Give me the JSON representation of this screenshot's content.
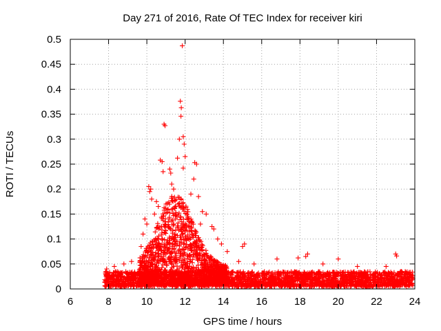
{
  "chart_data": {
    "type": "scatter",
    "title": "Day 271 of 2016, Rate Of TEC Index for receiver kiri",
    "xlabel": "GPS time / hours",
    "ylabel": "ROTI / TECUs",
    "xlim": [
      6,
      24
    ],
    "ylim": [
      0,
      0.5
    ],
    "xticks": [
      6,
      8,
      10,
      12,
      14,
      16,
      18,
      20,
      22,
      24
    ],
    "xtick_labels": [
      "6",
      "8",
      "10",
      "12",
      "14",
      "16",
      "18",
      "20",
      "22",
      "24"
    ],
    "yticks": [
      0,
      0.05,
      0.1,
      0.15,
      0.2,
      0.25,
      0.3,
      0.35,
      0.4,
      0.45,
      0.5
    ],
    "ytick_labels": [
      "0",
      "0.05",
      "0.1",
      "0.15",
      "0.2",
      "0.25",
      "0.3",
      "0.35",
      "0.4",
      "0.45",
      "0.5"
    ],
    "grid": true,
    "marker": "+",
    "color": "#ff0000",
    "series": [
      {
        "name": "ROTI",
        "points": [
          [
            11.85,
            0.487
          ],
          [
            11.75,
            0.376
          ],
          [
            11.8,
            0.363
          ],
          [
            11.78,
            0.346
          ],
          [
            10.9,
            0.33
          ],
          [
            10.95,
            0.327
          ],
          [
            11.9,
            0.305
          ],
          [
            11.7,
            0.3
          ],
          [
            11.95,
            0.29
          ],
          [
            12.0,
            0.265
          ],
          [
            11.6,
            0.262
          ],
          [
            10.7,
            0.258
          ],
          [
            10.8,
            0.255
          ],
          [
            12.5,
            0.253
          ],
          [
            12.6,
            0.25
          ],
          [
            11.9,
            0.242
          ],
          [
            11.2,
            0.24
          ],
          [
            11.25,
            0.232
          ],
          [
            10.85,
            0.235
          ],
          [
            12.45,
            0.22
          ],
          [
            10.1,
            0.205
          ],
          [
            10.2,
            0.2
          ],
          [
            10.15,
            0.195
          ],
          [
            11.3,
            0.21
          ],
          [
            11.4,
            0.2
          ],
          [
            12.3,
            0.19
          ],
          [
            12.7,
            0.185
          ],
          [
            10.25,
            0.18
          ],
          [
            10.5,
            0.175
          ],
          [
            10.6,
            0.165
          ],
          [
            11.0,
            0.17
          ],
          [
            11.1,
            0.16
          ],
          [
            12.9,
            0.155
          ],
          [
            13.1,
            0.15
          ],
          [
            10.4,
            0.15
          ],
          [
            9.9,
            0.14
          ],
          [
            10.0,
            0.13
          ],
          [
            11.5,
            0.14
          ],
          [
            12.2,
            0.135
          ],
          [
            12.8,
            0.13
          ],
          [
            13.4,
            0.125
          ],
          [
            13.5,
            0.12
          ],
          [
            9.8,
            0.11
          ],
          [
            11.8,
            0.12
          ],
          [
            13.7,
            0.1
          ],
          [
            13.9,
            0.09
          ],
          [
            9.7,
            0.085
          ],
          [
            15.1,
            0.09
          ],
          [
            15.0,
            0.085
          ],
          [
            14.2,
            0.075
          ],
          [
            23.0,
            0.07
          ],
          [
            23.05,
            0.066
          ],
          [
            18.4,
            0.07
          ],
          [
            18.3,
            0.065
          ],
          [
            17.9,
            0.062
          ],
          [
            16.8,
            0.06
          ],
          [
            20.0,
            0.06
          ],
          [
            15.6,
            0.05
          ],
          [
            14.8,
            0.055
          ],
          [
            21.0,
            0.045
          ],
          [
            19.2,
            0.05
          ],
          [
            22.5,
            0.045
          ],
          [
            8.3,
            0.045
          ],
          [
            8.8,
            0.05
          ],
          [
            9.2,
            0.055
          ],
          [
            7.9,
            0.04
          ]
        ]
      }
    ],
    "dense_band": {
      "note": "dense cluster of low ROTI values along the baseline",
      "x_range": [
        7.8,
        23.9
      ],
      "y_range": [
        0.005,
        0.035
      ]
    }
  }
}
